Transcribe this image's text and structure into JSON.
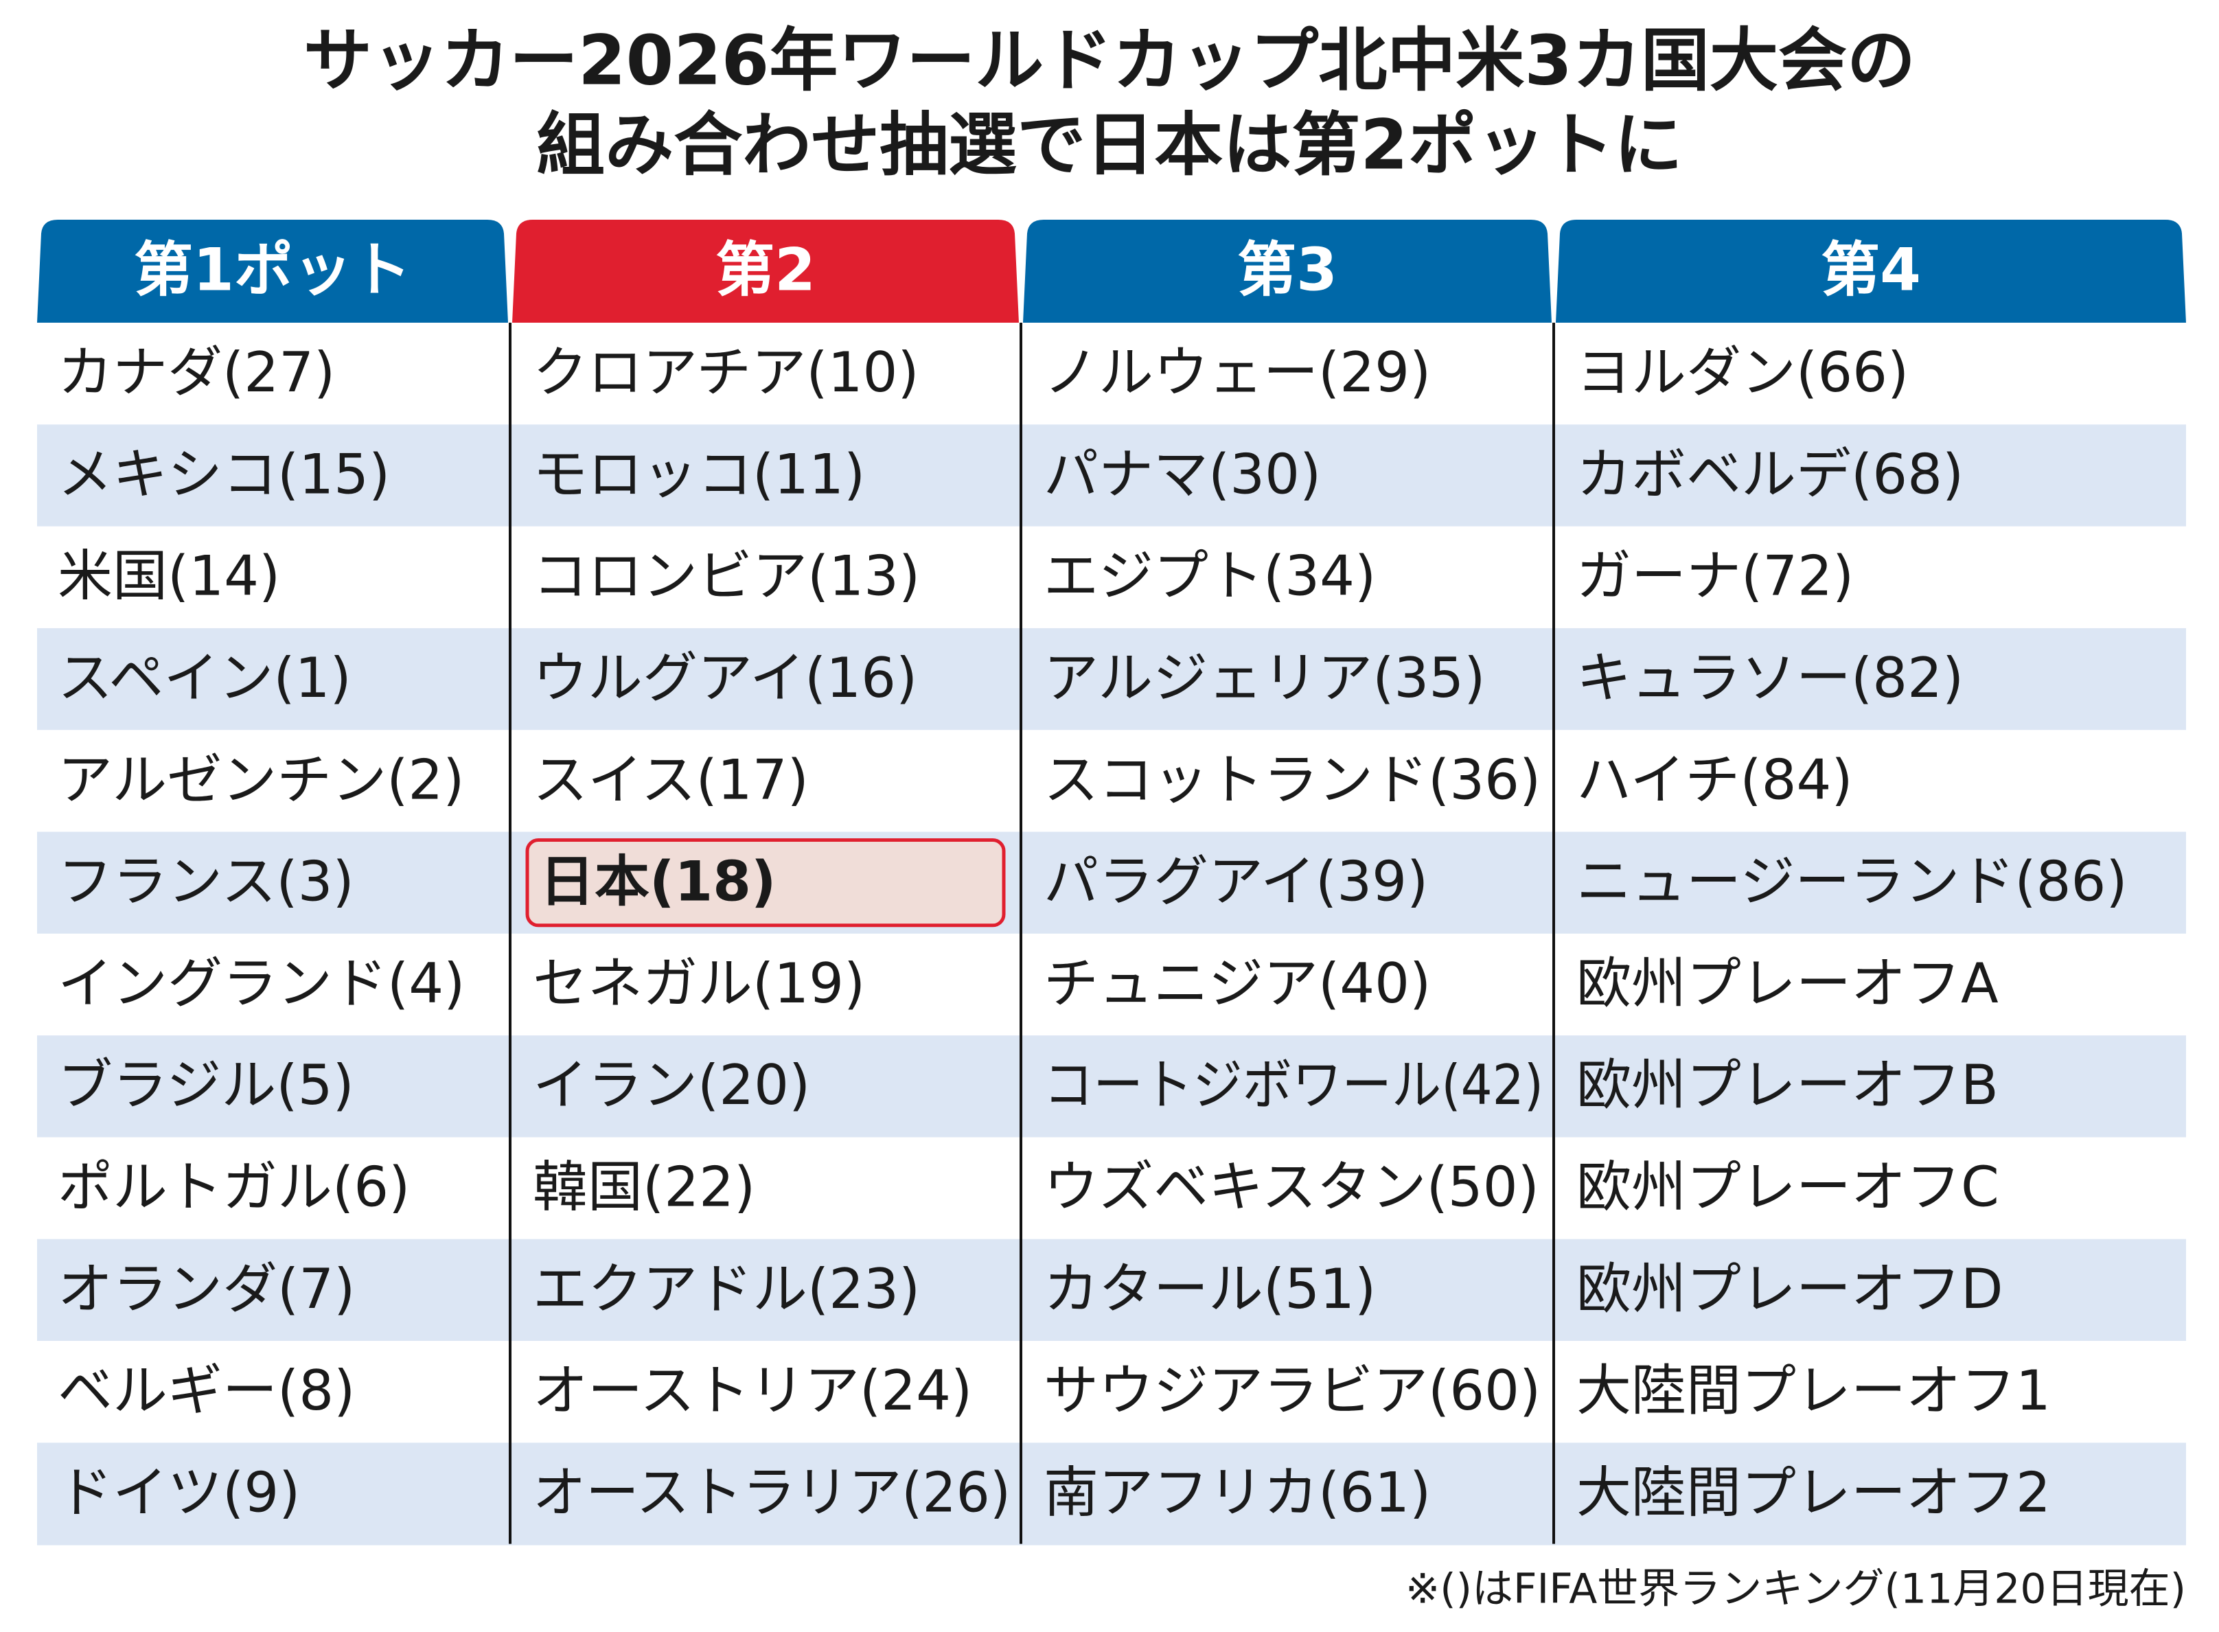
{
  "title": {
    "line1": "サッカー2026年ワールドカップ北中米3カ国大会の",
    "line2": "組み合わせ抽選で日本は第2ポットに"
  },
  "columns": [
    {
      "header": "第1ポット",
      "color": "#0068a8",
      "items": [
        "カナダ(27)",
        "メキシコ(15)",
        "米国(14)",
        "スペイン(1)",
        "アルゼンチン(2)",
        "フランス(3)",
        "イングランド(4)",
        "ブラジル(5)",
        "ポルトガル(6)",
        "オランダ(7)",
        "ベルギー(8)",
        "ドイツ(9)"
      ]
    },
    {
      "header": "第2",
      "color": "#e01f2f",
      "highlight": 5,
      "items": [
        "クロアチア(10)",
        "モロッコ(11)",
        "コロンビア(13)",
        "ウルグアイ(16)",
        "スイス(17)",
        "日本(18)",
        "セネガル(19)",
        "イラン(20)",
        "韓国(22)",
        "エクアドル(23)",
        "オーストリア(24)",
        "オーストラリア(26)"
      ]
    },
    {
      "header": "第3",
      "color": "#0068a8",
      "items": [
        "ノルウェー(29)",
        "パナマ(30)",
        "エジプト(34)",
        "アルジェリア(35)",
        "スコットランド(36)",
        "パラグアイ(39)",
        "チュニジア(40)",
        "コートジボワール(42)",
        "ウズベキスタン(50)",
        "カタール(51)",
        "サウジアラビア(60)",
        "南アフリカ(61)"
      ]
    },
    {
      "header": "第4",
      "color": "#0068a8",
      "items": [
        "ヨルダン(66)",
        "カボベルデ(68)",
        "ガーナ(72)",
        "キュラソー(82)",
        "ハイチ(84)",
        "ニュージーランド(86)",
        "欧州プレーオフA",
        "欧州プレーオフB",
        "欧州プレーオフC",
        "欧州プレーオフD",
        "大陸間プレーオフ1",
        "大陸間プレーオフ2"
      ]
    }
  ],
  "footnote": "※()はFIFA世界ランキング(11月20日現在)"
}
